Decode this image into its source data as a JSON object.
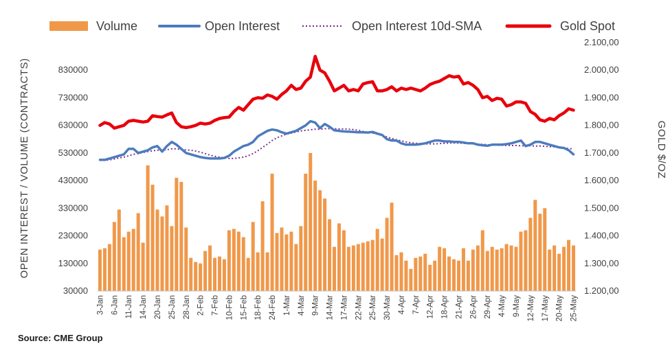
{
  "colors": {
    "volume": "#F0984A",
    "open_interest": "#4C7BBE",
    "sma": "#7E2F8E",
    "gold": "#E8000B",
    "text": "#404040"
  },
  "source": "Source: CME Group",
  "chart_data": {
    "type": "bar-line-combo",
    "legend": [
      {
        "key": "volume",
        "label": "Volume",
        "style": "bar"
      },
      {
        "key": "open_interest",
        "label": "Open Interest",
        "style": "line"
      },
      {
        "key": "sma",
        "label": "Open Interest 10d-SMA",
        "style": "dotted"
      },
      {
        "key": "gold",
        "label": "Gold Spot",
        "style": "line"
      }
    ],
    "legend_position": "top",
    "ylabel_left": "OPEN INTEREST / VOLUME (CONTRACTS)",
    "ylabel_right": "GOLD $/OZ",
    "ylim_left": [
      30000,
      930000
    ],
    "ylim_right": [
      1200,
      2100
    ],
    "yticks_left": [
      "30000",
      "130000",
      "230000",
      "330000",
      "430000",
      "530000",
      "630000",
      "730000",
      "830000"
    ],
    "yticks_left_values": [
      30000,
      130000,
      230000,
      330000,
      430000,
      530000,
      630000,
      730000,
      830000
    ],
    "yticks_right": [
      "1.200,00",
      "1.300,00",
      "1.400,00",
      "1.500,00",
      "1.600,00",
      "1.700,00",
      "1.800,00",
      "1.900,00",
      "2.000,00",
      "2.100,00"
    ],
    "yticks_right_values": [
      1200,
      1300,
      1400,
      1500,
      1600,
      1700,
      1800,
      1900,
      2000,
      2100
    ],
    "x_tick_labels": [
      {
        "i": 0,
        "label": "3-Jan"
      },
      {
        "i": 3,
        "label": "6-Jan"
      },
      {
        "i": 6,
        "label": "11-Jan"
      },
      {
        "i": 9,
        "label": "14-Jan"
      },
      {
        "i": 12,
        "label": "20-Jan"
      },
      {
        "i": 15,
        "label": "25-Jan"
      },
      {
        "i": 18,
        "label": "28-Jan"
      },
      {
        "i": 21,
        "label": "2-Feb"
      },
      {
        "i": 24,
        "label": "7-Feb"
      },
      {
        "i": 27,
        "label": "10-Feb"
      },
      {
        "i": 30,
        "label": "15-Feb"
      },
      {
        "i": 33,
        "label": "18-Feb"
      },
      {
        "i": 36,
        "label": "24-Feb"
      },
      {
        "i": 39,
        "label": "1-Mar"
      },
      {
        "i": 42,
        "label": "4-Mar"
      },
      {
        "i": 45,
        "label": "9-Mar"
      },
      {
        "i": 48,
        "label": "14-Mar"
      },
      {
        "i": 51,
        "label": "17-Mar"
      },
      {
        "i": 54,
        "label": "22-Mar"
      },
      {
        "i": 57,
        "label": "25-Mar"
      },
      {
        "i": 60,
        "label": "30-Mar"
      },
      {
        "i": 63,
        "label": "4-Apr"
      },
      {
        "i": 66,
        "label": "7-Apr"
      },
      {
        "i": 69,
        "label": "12-Apr"
      },
      {
        "i": 72,
        "label": "18-Apr"
      },
      {
        "i": 75,
        "label": "21-Apr"
      },
      {
        "i": 78,
        "label": "26-Apr"
      },
      {
        "i": 81,
        "label": "29-Apr"
      },
      {
        "i": 84,
        "label": "4-May"
      },
      {
        "i": 87,
        "label": "9-May"
      },
      {
        "i": 90,
        "label": "12-May"
      },
      {
        "i": 93,
        "label": "17-May"
      },
      {
        "i": 96,
        "label": "20-May"
      },
      {
        "i": 99,
        "label": "25-May"
      }
    ],
    "volume": [
      180000,
      185000,
      200000,
      280000,
      325000,
      225000,
      245000,
      255000,
      312000,
      205000,
      485000,
      415000,
      325000,
      300000,
      340000,
      265000,
      440000,
      425000,
      260000,
      150000,
      135000,
      130000,
      175000,
      195000,
      150000,
      155000,
      145000,
      250000,
      255000,
      245000,
      225000,
      150000,
      280000,
      170000,
      355000,
      170000,
      455000,
      240000,
      260000,
      235000,
      245000,
      200000,
      265000,
      455000,
      530000,
      430000,
      395000,
      365000,
      290000,
      190000,
      275000,
      250000,
      190000,
      195000,
      200000,
      205000,
      210000,
      215000,
      255000,
      220000,
      295000,
      350000,
      160000,
      170000,
      140000,
      110000,
      150000,
      155000,
      165000,
      125000,
      140000,
      190000,
      185000,
      155000,
      145000,
      140000,
      185000,
      140000,
      180000,
      195000,
      250000,
      175000,
      190000,
      180000,
      185000,
      200000,
      195000,
      190000,
      245000,
      250000,
      295000,
      360000,
      310000,
      330000,
      180000,
      195000,
      165000,
      190000,
      215000,
      195000
    ],
    "open_interest": [
      505000,
      505000,
      510000,
      515000,
      520000,
      525000,
      545000,
      545000,
      530000,
      535000,
      540000,
      550000,
      555000,
      535000,
      555000,
      570000,
      560000,
      545000,
      530000,
      525000,
      520000,
      515000,
      512000,
      510000,
      510000,
      510000,
      512000,
      520000,
      535000,
      545000,
      555000,
      560000,
      570000,
      590000,
      600000,
      610000,
      615000,
      612000,
      605000,
      600000,
      605000,
      610000,
      620000,
      630000,
      645000,
      640000,
      620000,
      635000,
      625000,
      612000,
      610000,
      608000,
      607000,
      606000,
      605000,
      605000,
      604000,
      606000,
      600000,
      595000,
      580000,
      575000,
      575000,
      565000,
      560000,
      560000,
      560000,
      562000,
      565000,
      570000,
      575000,
      575000,
      572000,
      572000,
      570000,
      570000,
      568000,
      565000,
      565000,
      560000,
      558000,
      556000,
      560000,
      560000,
      560000,
      562000,
      565000,
      570000,
      575000,
      555000,
      560000,
      570000,
      570000,
      565000,
      560000,
      555000,
      550000,
      548000,
      540000,
      525000
    ],
    "open_interest_sma": [
      505000,
      503000,
      505000,
      508000,
      512000,
      515000,
      520000,
      525000,
      528000,
      532000,
      535000,
      538000,
      540000,
      540000,
      542000,
      545000,
      545000,
      543000,
      541000,
      540000,
      537000,
      533000,
      528000,
      522000,
      518000,
      515000,
      512000,
      510000,
      510000,
      512000,
      515000,
      520000,
      528000,
      538000,
      550000,
      562000,
      575000,
      585000,
      592000,
      598000,
      602000,
      606000,
      610000,
      612000,
      614000,
      616000,
      616000,
      618000,
      618000,
      618000,
      617000,
      617000,
      616000,
      615000,
      612000,
      608000,
      605000,
      602000,
      598000,
      593000,
      588000,
      583000,
      578000,
      574000,
      570000,
      567000,
      565000,
      564000,
      563000,
      563000,
      563000,
      564000,
      565000,
      566000,
      566000,
      566000,
      565000,
      564000,
      563000,
      562000,
      561000,
      560000,
      559000,
      558000,
      558000,
      557000,
      557000,
      557000,
      556000,
      556000,
      556000,
      555000,
      555000,
      554000,
      553000,
      552000,
      550000,
      548000,
      546000,
      545000
    ],
    "gold_spot": [
      1800,
      1810,
      1805,
      1790,
      1795,
      1800,
      1815,
      1818,
      1815,
      1812,
      1815,
      1835,
      1832,
      1830,
      1838,
      1845,
      1810,
      1795,
      1792,
      1795,
      1800,
      1808,
      1805,
      1808,
      1818,
      1825,
      1828,
      1830,
      1850,
      1865,
      1855,
      1875,
      1895,
      1900,
      1898,
      1910,
      1905,
      1895,
      1912,
      1925,
      1945,
      1930,
      1935,
      1960,
      1975,
      2050,
      2000,
      1990,
      1960,
      1925,
      1935,
      1945,
      1925,
      1930,
      1925,
      1950,
      1955,
      1958,
      1925,
      1925,
      1930,
      1940,
      1925,
      1935,
      1930,
      1935,
      1930,
      1925,
      1935,
      1948,
      1955,
      1960,
      1970,
      1980,
      1975,
      1978,
      1950,
      1955,
      1945,
      1930,
      1900,
      1905,
      1890,
      1898,
      1895,
      1870,
      1875,
      1885,
      1885,
      1880,
      1850,
      1840,
      1820,
      1815,
      1825,
      1820,
      1835,
      1845,
      1860,
      1855
    ]
  }
}
